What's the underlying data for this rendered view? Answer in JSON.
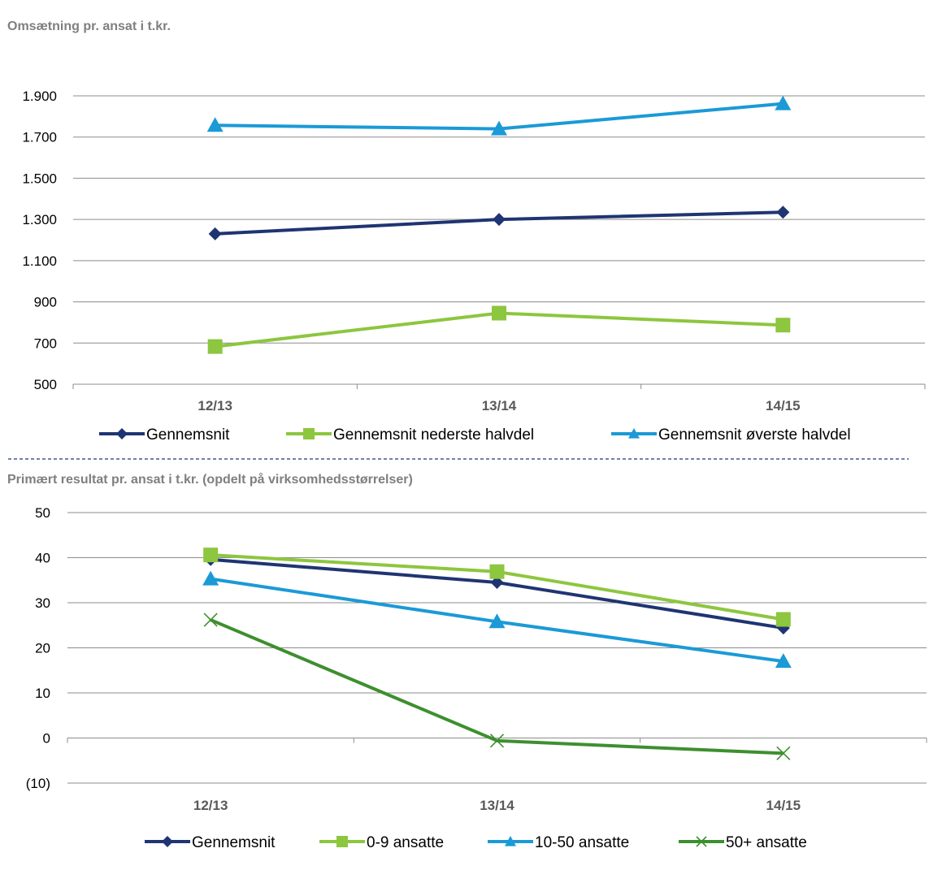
{
  "chart_data": [
    {
      "type": "line",
      "title": "Omsætning pr. ansat i t.kr.",
      "categories": [
        "12/13",
        "13/14",
        "14/15"
      ],
      "ylim": [
        500,
        1900
      ],
      "yticks": [
        "1.900",
        "1.700",
        "1.500",
        "1.300",
        "1.100",
        "900",
        "700",
        "500"
      ],
      "ytick_values": [
        1900,
        1700,
        1500,
        1300,
        1100,
        900,
        700,
        500
      ],
      "grid": true,
      "legend_position": "bottom",
      "series": [
        {
          "name": "Gennemsnit",
          "values": [
            1230,
            1300,
            1335
          ],
          "color": "#1f3472",
          "marker": "diamond"
        },
        {
          "name": "Gennemsnit nederste halvdel",
          "values": [
            683,
            845,
            787
          ],
          "color": "#8dc63f",
          "marker": "square"
        },
        {
          "name": "Gennemsnit øverste halvdel",
          "values": [
            1757,
            1740,
            1862
          ],
          "color": "#1b9ad6",
          "marker": "triangle"
        }
      ]
    },
    {
      "type": "line",
      "title": "Primært resultat pr. ansat i t.kr. (opdelt på virksomhedsstørrelser)",
      "categories": [
        "12/13",
        "13/14",
        "14/15"
      ],
      "ylim": [
        -10,
        50
      ],
      "yticks": [
        "50",
        "40",
        "30",
        "20",
        "10",
        "0",
        "(10)"
      ],
      "ytick_values": [
        50,
        40,
        30,
        20,
        10,
        0,
        -10
      ],
      "grid": true,
      "legend_position": "bottom",
      "series": [
        {
          "name": "Gennemsnit",
          "values": [
            39.6,
            34.5,
            24.4
          ],
          "color": "#1f3472",
          "marker": "diamond"
        },
        {
          "name": "0-9 ansatte",
          "values": [
            40.6,
            36.9,
            26.3
          ],
          "color": "#8dc63f",
          "marker": "square"
        },
        {
          "name": "10-50 ansatte",
          "values": [
            35.3,
            25.8,
            17.0
          ],
          "color": "#1b9ad6",
          "marker": "triangle"
        },
        {
          "name": "50+ ansatte",
          "values": [
            26.2,
            -0.6,
            -3.4
          ],
          "color": "#3e8f2f",
          "marker": "x"
        }
      ]
    }
  ]
}
